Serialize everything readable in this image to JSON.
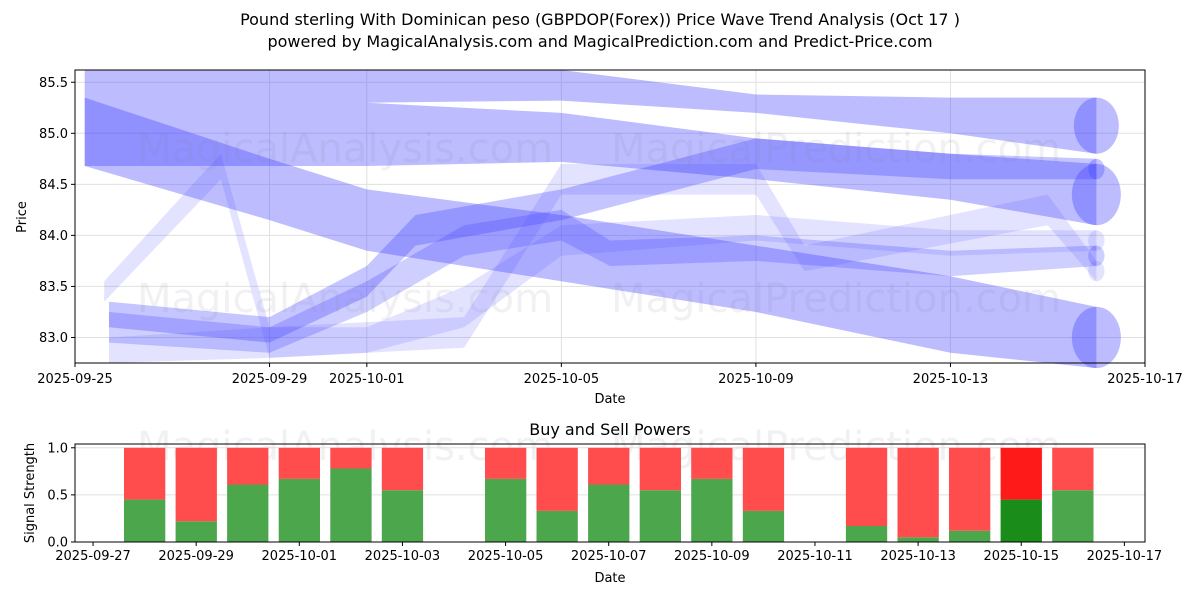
{
  "header": {
    "title_line1": "Pound sterling With Dominican peso (GBPDOP(Forex)) Price Wave Trend Analysis (Oct 17 )",
    "title_line2": "powered by MagicalAnalysis.com and MagicalPrediction.com and Predict-Price.com"
  },
  "watermarks": [
    "MagicalAnalysis.com",
    "MagicalPrediction.com"
  ],
  "colors": {
    "wave": "#4040ff",
    "buy": "#4ca64c",
    "sell": "#ff4c4c",
    "buy_highlight": "#1a8c1a",
    "sell_highlight": "#ff1a1a",
    "grid": "#e0e0e0"
  },
  "chart_data": [
    {
      "type": "area",
      "title": "",
      "xlabel": "Date",
      "ylabel": "Price",
      "x_ticks": [
        "2025-09-25",
        "2025-09-29",
        "2025-10-01",
        "2025-10-05",
        "2025-10-09",
        "2025-10-13",
        "2025-10-17"
      ],
      "y_ticks": [
        "83.0",
        "83.5",
        "84.0",
        "84.5",
        "85.0",
        "85.5"
      ],
      "xlim": [
        "2025-09-25",
        "2025-10-17"
      ],
      "ylim": [
        82.75,
        85.62
      ],
      "grid": true,
      "series": [
        {
          "name": "wave-top-flat",
          "opacity": 0.35,
          "points": [
            [
              "2025-09-25.2",
              85.62,
              85.35
            ],
            [
              "2025-10-01",
              85.62,
              85.3
            ],
            [
              "2025-10-05",
              85.62,
              85.32
            ],
            [
              "2025-10-09",
              85.38,
              85.2
            ],
            [
              "2025-10-13",
              85.35,
              85.0
            ],
            [
              "2025-10-16",
              85.35,
              84.8
            ]
          ]
        },
        {
          "name": "wave-upper-band",
          "opacity": 0.35,
          "points": [
            [
              "2025-09-25.2",
              85.35,
              84.68
            ],
            [
              "2025-10-01",
              85.3,
              84.68
            ],
            [
              "2025-10-05",
              85.2,
              84.72
            ],
            [
              "2025-10-09",
              84.95,
              84.55
            ],
            [
              "2025-10-13",
              84.8,
              84.35
            ],
            [
              "2025-10-16",
              84.7,
              84.1
            ]
          ]
        },
        {
          "name": "wave-diagonal",
          "opacity": 0.35,
          "points": [
            [
              "2025-09-25.2",
              85.35,
              84.68
            ],
            [
              "2025-09-29",
              84.75,
              84.15
            ],
            [
              "2025-10-01",
              84.45,
              83.85
            ],
            [
              "2025-10-05",
              84.2,
              83.55
            ],
            [
              "2025-10-09",
              83.9,
              83.25
            ],
            [
              "2025-10-13",
              83.6,
              82.85
            ],
            [
              "2025-10-16",
              83.3,
              82.7
            ]
          ]
        },
        {
          "name": "wave-rising-1",
          "opacity": 0.3,
          "points": [
            [
              "2025-09-25.7",
              83.35,
              83.1
            ],
            [
              "2025-09-29",
              83.2,
              82.95
            ],
            [
              "2025-10-01",
              83.7,
              83.4
            ],
            [
              "2025-10-02",
              84.2,
              83.9
            ],
            [
              "2025-10-05",
              84.45,
              84.15
            ],
            [
              "2025-10-09",
              84.95,
              84.65
            ],
            [
              "2025-10-13",
              84.8,
              84.55
            ],
            [
              "2025-10-16",
              84.75,
              84.55
            ]
          ]
        },
        {
          "name": "wave-rising-2",
          "opacity": 0.25,
          "points": [
            [
              "2025-09-25.7",
              83.25,
              82.95
            ],
            [
              "2025-09-29",
              83.1,
              82.85
            ],
            [
              "2025-10-01",
              83.55,
              83.25
            ],
            [
              "2025-10-03",
              84.1,
              83.8
            ],
            [
              "2025-10-05",
              84.25,
              83.95
            ],
            [
              "2025-10-06",
              83.95,
              83.7
            ],
            [
              "2025-10-09",
              84.0,
              83.75
            ],
            [
              "2025-10-13",
              83.85,
              83.6
            ],
            [
              "2025-10-16",
              83.9,
              83.7
            ]
          ]
        },
        {
          "name": "wave-zigzag",
          "opacity": 0.15,
          "points": [
            [
              "2025-09-25.6",
              83.55,
              83.35
            ],
            [
              "2025-09-28",
              84.8,
              84.55
            ],
            [
              "2025-09-29",
              83.1,
              82.8
            ],
            [
              "2025-10-03",
              83.2,
              82.9
            ],
            [
              "2025-10-05",
              84.7,
              84.4
            ],
            [
              "2025-10-09",
              84.7,
              84.4
            ],
            [
              "2025-10-10",
              83.9,
              83.65
            ],
            [
              "2025-10-15",
              84.4,
              84.1
            ],
            [
              "2025-10-16",
              83.75,
              83.55
            ]
          ]
        },
        {
          "name": "wave-low-wide",
          "opacity": 0.15,
          "points": [
            [
              "2025-09-25.7",
              83.0,
              82.75
            ],
            [
              "2025-09-29",
              83.1,
              82.8
            ],
            [
              "2025-10-01",
              83.1,
              82.85
            ],
            [
              "2025-10-03",
              83.5,
              83.1
            ],
            [
              "2025-10-05",
              84.1,
              83.8
            ],
            [
              "2025-10-09",
              84.2,
              83.95
            ],
            [
              "2025-10-13",
              84.05,
              83.8
            ],
            [
              "2025-10-16",
              84.05,
              83.85
            ]
          ]
        }
      ]
    },
    {
      "type": "bar",
      "title": "Buy and Sell Powers",
      "xlabel": "Date",
      "ylabel": "Signal Strength",
      "x_ticks": [
        "2025-09-27",
        "2025-09-29",
        "2025-10-01",
        "2025-10-03",
        "2025-10-05",
        "2025-10-07",
        "2025-10-09",
        "2025-10-11",
        "2025-10-13",
        "2025-10-15",
        "2025-10-17"
      ],
      "y_ticks": [
        "0.0",
        "0.5",
        "1.0"
      ],
      "ylim": [
        0,
        1.04
      ],
      "xlim": [
        "2025-09-26.65",
        "2025-10-17.4"
      ],
      "grid": true,
      "categories": [
        "2025-09-28",
        "2025-09-29",
        "2025-09-30",
        "2025-10-01",
        "2025-10-02",
        "2025-10-03",
        "2025-10-05",
        "2025-10-06",
        "2025-10-07",
        "2025-10-08",
        "2025-10-09",
        "2025-10-10",
        "2025-10-12",
        "2025-10-13",
        "2025-10-14",
        "2025-10-15",
        "2025-10-16"
      ],
      "series": [
        {
          "name": "Buy",
          "values": [
            0.45,
            0.22,
            0.61,
            0.67,
            0.78,
            0.55,
            0.67,
            0.33,
            0.61,
            0.55,
            0.67,
            0.33,
            0.17,
            0.05,
            0.12,
            0.45,
            0.55
          ]
        },
        {
          "name": "Sell",
          "values": [
            0.55,
            0.78,
            0.39,
            0.33,
            0.22,
            0.45,
            0.33,
            0.67,
            0.39,
            0.45,
            0.33,
            0.67,
            0.83,
            0.95,
            0.88,
            0.55,
            0.45
          ]
        }
      ],
      "highlight": "2025-10-15"
    }
  ]
}
